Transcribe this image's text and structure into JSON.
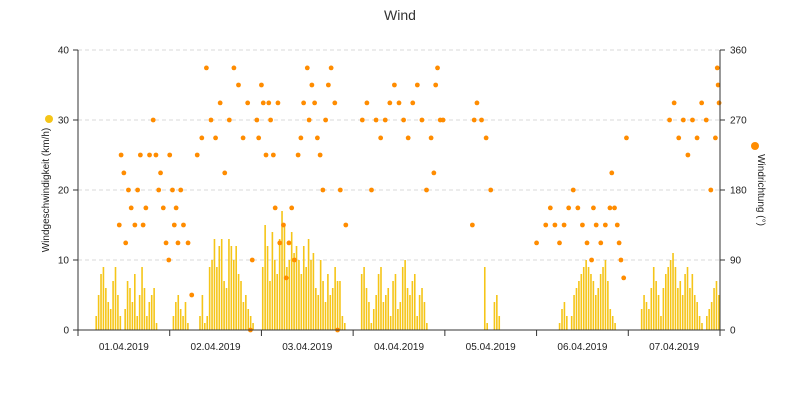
{
  "chart_data": {
    "type": "bar+scatter",
    "title": "Wind",
    "ylabel_left": "Windgeschwindigkeit (km/h)",
    "ylabel_right": "Windrichtung (°)",
    "ylim_left": [
      0,
      40
    ],
    "ylim_right": [
      0,
      360
    ],
    "yticks_left": [
      "0",
      "10",
      "20",
      "30",
      "40"
    ],
    "yticks_right": [
      "0",
      "90",
      "180",
      "270",
      "360"
    ],
    "x_range_days": [
      "01.04.2019",
      "07.04.2019"
    ],
    "x_tick_labels": [
      "01.04.2019",
      "02.04.2019",
      "03.04.2019",
      "04.04.2019",
      "05.04.2019",
      "06.04.2019",
      "07.04.2019"
    ],
    "grid": "horizontal dashed",
    "colors": {
      "speed": "#f5c518",
      "direction": "#ff8c00"
    },
    "series": [
      {
        "name": "Windgeschwindigkeit (km/h)",
        "axis": "left",
        "type": "bar",
        "unit": "km/h",
        "data_by_day": [
          [
            0,
            0,
            0,
            0,
            0,
            0,
            0,
            2,
            5,
            8,
            9,
            6,
            4,
            3,
            7,
            9,
            5,
            2,
            0,
            3,
            7,
            6,
            4,
            8,
            2,
            5,
            9,
            6,
            2,
            4,
            5,
            6,
            1,
            0,
            0,
            0,
            0,
            0
          ],
          [
            0,
            2,
            4,
            5,
            3,
            2,
            4,
            1,
            0,
            0,
            0,
            0,
            2,
            5,
            1,
            2,
            9,
            10,
            13,
            9,
            12,
            13,
            7,
            6,
            13,
            12,
            10,
            12,
            8,
            7,
            4,
            5,
            3,
            2,
            1,
            0,
            0,
            0
          ],
          [
            9,
            15,
            12,
            7,
            14,
            10,
            8,
            13,
            17,
            15,
            9,
            10,
            14,
            11,
            12,
            10,
            8,
            12,
            9,
            13,
            10,
            11,
            6,
            5,
            10,
            7,
            4,
            8,
            5,
            6,
            9,
            7,
            7,
            2,
            1,
            0,
            0,
            0
          ],
          [
            0,
            0,
            0,
            8,
            9,
            6,
            4,
            1,
            3,
            5,
            8,
            9,
            4,
            5,
            6,
            2,
            7,
            8,
            3,
            4,
            9,
            10,
            6,
            5,
            7,
            8,
            2,
            5,
            6,
            4,
            1,
            0,
            0,
            0,
            0,
            0,
            0,
            0
          ],
          [
            0,
            0,
            0,
            0,
            0,
            0,
            0,
            0,
            0,
            0,
            0,
            0,
            0,
            0,
            0,
            0,
            9,
            1,
            0,
            0,
            4,
            5,
            2,
            0,
            0,
            0,
            0,
            0,
            0,
            0,
            0,
            0,
            0,
            0,
            0,
            0,
            0,
            0
          ],
          [
            0,
            0,
            0,
            0,
            0,
            0,
            0,
            0,
            0,
            1,
            3,
            4,
            2,
            0,
            2,
            5,
            6,
            7,
            8,
            9,
            10,
            9,
            8,
            7,
            5,
            6,
            8,
            9,
            10,
            7,
            3,
            2,
            1,
            0,
            0,
            0,
            0,
            0
          ],
          [
            0,
            0,
            0,
            0,
            0,
            3,
            5,
            4,
            3,
            6,
            9,
            7,
            5,
            2,
            6,
            8,
            9,
            10,
            11,
            9,
            6,
            7,
            5,
            8,
            9,
            6,
            8,
            5,
            4,
            2,
            1,
            0,
            2,
            3,
            4,
            6,
            7,
            5
          ]
        ]
      },
      {
        "name": "Windrichtung (°)",
        "axis": "right",
        "type": "scatter",
        "unit": "°",
        "data_by_day": [
          [
            [
              0.45,
              135
            ],
            [
              0.47,
              225
            ],
            [
              0.5,
              202
            ],
            [
              0.52,
              112
            ],
            [
              0.55,
              180
            ],
            [
              0.58,
              157
            ],
            [
              0.62,
              135
            ],
            [
              0.65,
              180
            ],
            [
              0.68,
              225
            ],
            [
              0.71,
              135
            ],
            [
              0.74,
              157
            ],
            [
              0.78,
              225
            ],
            [
              0.82,
              270
            ],
            [
              0.85,
              225
            ],
            [
              0.88,
              180
            ],
            [
              0.9,
              202
            ],
            [
              0.93,
              157
            ],
            [
              0.96,
              112
            ],
            [
              0.99,
              90
            ]
          ],
          [
            [
              0.0,
              225
            ],
            [
              0.03,
              180
            ],
            [
              0.05,
              135
            ],
            [
              0.07,
              157
            ],
            [
              0.09,
              112
            ],
            [
              0.12,
              180
            ],
            [
              0.15,
              135
            ],
            [
              0.2,
              112
            ],
            [
              0.24,
              45
            ],
            [
              0.3,
              225
            ],
            [
              0.35,
              247
            ],
            [
              0.4,
              337
            ],
            [
              0.45,
              270
            ],
            [
              0.5,
              247
            ],
            [
              0.55,
              292
            ],
            [
              0.6,
              202
            ],
            [
              0.65,
              270
            ],
            [
              0.7,
              337
            ],
            [
              0.75,
              315
            ],
            [
              0.8,
              247
            ],
            [
              0.85,
              292
            ],
            [
              0.88,
              0
            ],
            [
              0.9,
              90
            ],
            [
              0.95,
              270
            ],
            [
              0.97,
              247
            ]
          ],
          [
            [
              0.0,
              315
            ],
            [
              0.02,
              292
            ],
            [
              0.05,
              225
            ],
            [
              0.08,
              292
            ],
            [
              0.1,
              270
            ],
            [
              0.13,
              225
            ],
            [
              0.15,
              157
            ],
            [
              0.18,
              292
            ],
            [
              0.2,
              112
            ],
            [
              0.24,
              135
            ],
            [
              0.27,
              67
            ],
            [
              0.3,
              112
            ],
            [
              0.33,
              157
            ],
            [
              0.36,
              90
            ],
            [
              0.4,
              225
            ],
            [
              0.43,
              247
            ],
            [
              0.46,
              292
            ],
            [
              0.5,
              337
            ],
            [
              0.52,
              270
            ],
            [
              0.55,
              315
            ],
            [
              0.58,
              292
            ],
            [
              0.61,
              247
            ],
            [
              0.64,
              225
            ],
            [
              0.67,
              180
            ],
            [
              0.7,
              270
            ],
            [
              0.73,
              315
            ],
            [
              0.76,
              337
            ],
            [
              0.8,
              292
            ],
            [
              0.83,
              0
            ],
            [
              0.86,
              180
            ],
            [
              0.92,
              135
            ]
          ],
          [
            [
              0.1,
              270
            ],
            [
              0.15,
              292
            ],
            [
              0.2,
              180
            ],
            [
              0.25,
              270
            ],
            [
              0.3,
              247
            ],
            [
              0.35,
              270
            ],
            [
              0.4,
              292
            ],
            [
              0.45,
              315
            ],
            [
              0.5,
              292
            ],
            [
              0.55,
              270
            ],
            [
              0.6,
              247
            ],
            [
              0.65,
              292
            ],
            [
              0.7,
              315
            ],
            [
              0.75,
              270
            ],
            [
              0.8,
              180
            ],
            [
              0.85,
              247
            ],
            [
              0.88,
              202
            ],
            [
              0.9,
              315
            ],
            [
              0.92,
              337
            ],
            [
              0.95,
              270
            ],
            [
              0.98,
              270
            ]
          ],
          [
            [
              0.3,
              135
            ],
            [
              0.32,
              270
            ],
            [
              0.35,
              292
            ],
            [
              0.4,
              270
            ],
            [
              0.45,
              247
            ],
            [
              0.5,
              180
            ]
          ],
          [
            [
              0.0,
              112
            ],
            [
              0.1,
              135
            ],
            [
              0.15,
              157
            ],
            [
              0.2,
              135
            ],
            [
              0.25,
              112
            ],
            [
              0.3,
              135
            ],
            [
              0.35,
              157
            ],
            [
              0.4,
              180
            ],
            [
              0.45,
              157
            ],
            [
              0.5,
              135
            ],
            [
              0.55,
              112
            ],
            [
              0.6,
              90
            ],
            [
              0.62,
              157
            ],
            [
              0.65,
              135
            ],
            [
              0.7,
              112
            ],
            [
              0.75,
              135
            ],
            [
              0.8,
              157
            ],
            [
              0.82,
              202
            ],
            [
              0.85,
              157
            ],
            [
              0.88,
              135
            ],
            [
              0.9,
              112
            ],
            [
              0.92,
              90
            ],
            [
              0.95,
              67
            ],
            [
              0.98,
              247
            ]
          ],
          [
            [
              0.45,
              270
            ],
            [
              0.5,
              292
            ],
            [
              0.55,
              247
            ],
            [
              0.6,
              270
            ],
            [
              0.65,
              225
            ],
            [
              0.7,
              270
            ],
            [
              0.75,
              247
            ],
            [
              0.8,
              292
            ],
            [
              0.85,
              270
            ],
            [
              0.9,
              180
            ],
            [
              0.95,
              247
            ],
            [
              0.97,
              337
            ],
            [
              0.98,
              315
            ],
            [
              0.99,
              292
            ]
          ]
        ]
      }
    ]
  }
}
